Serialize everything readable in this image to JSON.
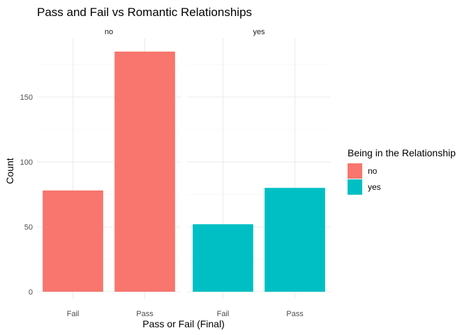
{
  "chart_data": {
    "type": "bar",
    "title": "Pass and Fail vs Romantic Relationships",
    "xlabel": "Pass or Fail (Final)",
    "ylabel": "Count",
    "categories": [
      "Fail",
      "Pass"
    ],
    "ylim": [
      0,
      195
    ],
    "yticks": [
      0,
      50,
      100,
      150
    ],
    "grid": true,
    "facets": [
      {
        "label": "no",
        "values": [
          78,
          185
        ],
        "color": "#F8766D"
      },
      {
        "label": "yes",
        "values": [
          52,
          80
        ],
        "color": "#00BFC4"
      }
    ],
    "legend": {
      "title": "Being in the Relationship",
      "placement": "right",
      "items": [
        {
          "label": "no",
          "color": "#F8766D"
        },
        {
          "label": "yes",
          "color": "#00BFC4"
        }
      ]
    }
  }
}
